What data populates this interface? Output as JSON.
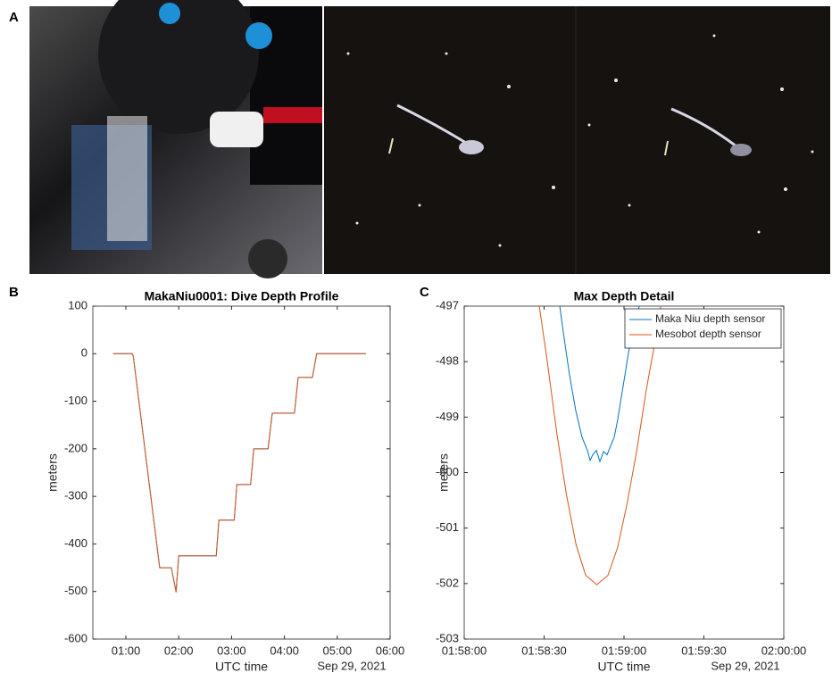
{
  "panels": {
    "a": "A",
    "b": "B",
    "c": "C"
  },
  "chart_data": [
    {
      "type": "line",
      "title": "MakaNiu0001: Dive Depth Profile",
      "ylabel": "meters",
      "xlabel": "UTC time",
      "date_label": "Sep 29, 2021",
      "xlim": [
        0.375,
        6
      ],
      "ylim": [
        -600,
        100
      ],
      "xticks": [
        {
          "value": 1,
          "label": "01:00"
        },
        {
          "value": 2,
          "label": "02:00"
        },
        {
          "value": 3,
          "label": "03:00"
        },
        {
          "value": 4,
          "label": "04:00"
        },
        {
          "value": 5,
          "label": "05:00"
        },
        {
          "value": 6,
          "label": "06:00"
        }
      ],
      "yticks": [
        -600,
        -500,
        -400,
        -300,
        -200,
        -100,
        0,
        100
      ],
      "series": [
        {
          "color": "#0072bd",
          "x": [
            0.76,
            1.12,
            1.14,
            1.64,
            1.86,
            1.95,
            2.0,
            2.71,
            2.76,
            3.05,
            3.1,
            3.36,
            3.42,
            3.69,
            3.77,
            4.19,
            4.26,
            4.53,
            4.61,
            5.54
          ],
          "values": [
            0,
            0,
            -5,
            -450,
            -450,
            -500,
            -425,
            -425,
            -350,
            -350,
            -275,
            -275,
            -200,
            -200,
            -125,
            -125,
            -50,
            -50,
            0,
            0
          ]
        },
        {
          "color": "#d95319",
          "x": [
            0.76,
            1.12,
            1.14,
            1.64,
            1.86,
            1.95,
            2.0,
            2.71,
            2.76,
            3.05,
            3.1,
            3.36,
            3.42,
            3.69,
            3.77,
            4.19,
            4.26,
            4.53,
            4.61,
            5.54
          ],
          "values": [
            0,
            0,
            -5,
            -450,
            -450,
            -502,
            -425,
            -425,
            -350,
            -350,
            -275,
            -275,
            -200,
            -200,
            -125,
            -125,
            -50,
            -50,
            0,
            0
          ]
        }
      ]
    },
    {
      "type": "line",
      "title": "Max Depth Detail",
      "ylabel": "meters",
      "xlabel": "UTC time",
      "date_label": "Sep 29, 2021",
      "xlim": [
        118,
        120
      ],
      "ylim": [
        -503,
        -497
      ],
      "xticks": [
        {
          "value": 118,
          "label": "01:58:00"
        },
        {
          "value": 118.5,
          "label": "01:58:30"
        },
        {
          "value": 119,
          "label": "01:59:00"
        },
        {
          "value": 119.5,
          "label": "01:59:30"
        },
        {
          "value": 120,
          "label": "02:00:00"
        }
      ],
      "yticks": [
        -503,
        -502,
        -501,
        -500,
        -499,
        -498,
        -497
      ],
      "legend": "upper right",
      "series": [
        {
          "name": "Maka Niu depth sensor",
          "color": "#0072bd",
          "x": [
            118.598,
            118.626,
            118.659,
            118.698,
            118.737,
            118.771,
            118.788,
            118.804,
            118.827,
            118.849,
            118.872,
            118.894,
            118.916,
            118.939,
            118.961,
            118.983,
            119.006,
            119.028,
            119.05,
            119.073,
            119.095
          ],
          "values": [
            -497,
            -497.59,
            -498.24,
            -498.88,
            -499.36,
            -499.6,
            -499.78,
            -499.68,
            -499.6,
            -499.8,
            -499.62,
            -499.68,
            -499.52,
            -499.36,
            -499.04,
            -498.64,
            -498.24,
            -497.84,
            -497.51,
            -497.27,
            -497
          ]
        },
        {
          "name": "Mesobot depth sensor",
          "color": "#d95319",
          "x": [
            118.47,
            118.52,
            118.58,
            118.64,
            118.7,
            118.76,
            118.83,
            118.9,
            118.96,
            119.02,
            119.08,
            119.14,
            119.2,
            119.23
          ],
          "values": [
            -497,
            -498,
            -499.3,
            -500.4,
            -501.3,
            -501.85,
            -502.02,
            -501.85,
            -501.35,
            -500.55,
            -499.6,
            -498.5,
            -497.55,
            -497
          ]
        }
      ]
    }
  ]
}
